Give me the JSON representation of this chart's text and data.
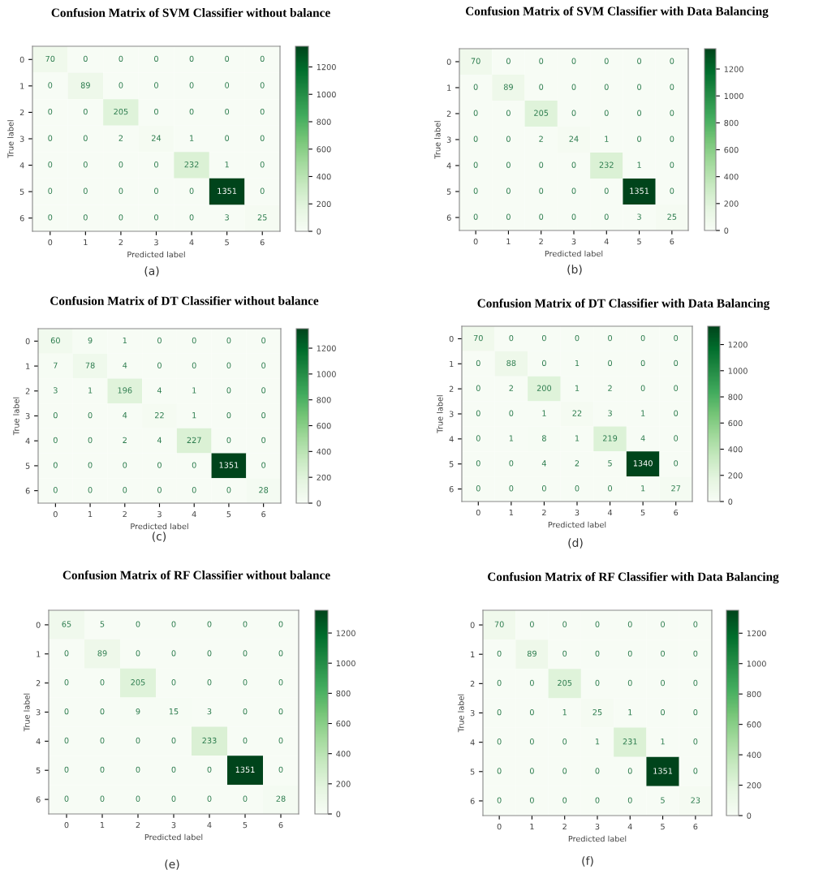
{
  "chart_data": [
    {
      "type": "heatmap",
      "title": "Confusion Matrix of SVM Classifier without balance",
      "xlabel": "Predicted label",
      "ylabel": "True label",
      "annotations": [
        "(a)"
      ],
      "categories": [
        "0",
        "1",
        "2",
        "3",
        "4",
        "5",
        "6"
      ],
      "y_categories": [
        "0",
        "1",
        "2",
        "3",
        "4",
        "5",
        "6"
      ],
      "cells": [
        [
          70,
          0,
          0,
          0,
          0,
          0,
          0
        ],
        [
          0,
          89,
          0,
          0,
          0,
          0,
          0
        ],
        [
          0,
          0,
          205,
          0,
          0,
          0,
          0
        ],
        [
          0,
          0,
          2,
          24,
          1,
          0,
          0
        ],
        [
          0,
          0,
          0,
          0,
          232,
          1,
          0
        ],
        [
          0,
          0,
          0,
          0,
          0,
          1351,
          0
        ],
        [
          0,
          0,
          0,
          0,
          0,
          3,
          25
        ]
      ],
      "clim": [
        0,
        1351
      ],
      "cticks": [
        0,
        200,
        400,
        600,
        800,
        1000,
        1200
      ],
      "data_labels": true
    },
    {
      "type": "heatmap",
      "title": "Confusion Matrix of SVM Classifier with Data Balancing",
      "xlabel": "Predicted label",
      "ylabel": "True label",
      "annotations": [
        "(b)"
      ],
      "categories": [
        "0",
        "1",
        "2",
        "3",
        "4",
        "5",
        "6"
      ],
      "y_categories": [
        "0",
        "1",
        "2",
        "3",
        "4",
        "5",
        "6"
      ],
      "cells": [
        [
          70,
          0,
          0,
          0,
          0,
          0,
          0
        ],
        [
          0,
          89,
          0,
          0,
          0,
          0,
          0
        ],
        [
          0,
          0,
          205,
          0,
          0,
          0,
          0
        ],
        [
          0,
          0,
          2,
          24,
          1,
          0,
          0
        ],
        [
          0,
          0,
          0,
          0,
          232,
          1,
          0
        ],
        [
          0,
          0,
          0,
          0,
          0,
          1351,
          0
        ],
        [
          0,
          0,
          0,
          0,
          0,
          3,
          25
        ]
      ],
      "clim": [
        0,
        1351
      ],
      "cticks": [
        0,
        200,
        400,
        600,
        800,
        1000,
        1200
      ],
      "data_labels": true
    },
    {
      "type": "heatmap",
      "title": "Confusion Matrix of DT Classifier without balance",
      "xlabel": "Predicted label",
      "ylabel": "True label",
      "annotations": [
        "(c)"
      ],
      "categories": [
        "0",
        "1",
        "2",
        "3",
        "4",
        "5",
        "6"
      ],
      "y_categories": [
        "0",
        "1",
        "2",
        "3",
        "4",
        "5",
        "6"
      ],
      "cells": [
        [
          60,
          9,
          1,
          0,
          0,
          0,
          0
        ],
        [
          7,
          78,
          4,
          0,
          0,
          0,
          0
        ],
        [
          3,
          1,
          196,
          4,
          1,
          0,
          0
        ],
        [
          0,
          0,
          4,
          22,
          1,
          0,
          0
        ],
        [
          0,
          0,
          2,
          4,
          227,
          0,
          0
        ],
        [
          0,
          0,
          0,
          0,
          0,
          1351,
          0
        ],
        [
          0,
          0,
          0,
          0,
          0,
          0,
          28
        ]
      ],
      "clim": [
        0,
        1351
      ],
      "cticks": [
        0,
        200,
        400,
        600,
        800,
        1000,
        1200
      ],
      "data_labels": true
    },
    {
      "type": "heatmap",
      "title": "Confusion Matrix of DT Classifier with Data Balancing",
      "xlabel": "Predicted label",
      "ylabel": "True label",
      "annotations": [
        "(d)"
      ],
      "categories": [
        "0",
        "1",
        "2",
        "3",
        "4",
        "5",
        "6"
      ],
      "y_categories": [
        "0",
        "1",
        "2",
        "3",
        "4",
        "5",
        "6"
      ],
      "cells": [
        [
          70,
          0,
          0,
          0,
          0,
          0,
          0
        ],
        [
          0,
          88,
          0,
          1,
          0,
          0,
          0
        ],
        [
          0,
          2,
          200,
          1,
          2,
          0,
          0
        ],
        [
          0,
          0,
          1,
          22,
          3,
          1,
          0
        ],
        [
          0,
          1,
          8,
          1,
          219,
          4,
          0
        ],
        [
          0,
          0,
          4,
          2,
          5,
          1340,
          0
        ],
        [
          0,
          0,
          0,
          0,
          0,
          1,
          27
        ]
      ],
      "clim": [
        0,
        1340
      ],
      "cticks": [
        0,
        200,
        400,
        600,
        800,
        1000,
        1200
      ],
      "data_labels": true
    },
    {
      "type": "heatmap",
      "title": "Confusion Matrix of RF Classifier without balance",
      "xlabel": "Predicted label",
      "ylabel": "True label",
      "annotations": [
        "(e)"
      ],
      "categories": [
        "0",
        "1",
        "2",
        "3",
        "4",
        "5",
        "6"
      ],
      "y_categories": [
        "0",
        "1",
        "2",
        "3",
        "4",
        "5",
        "6"
      ],
      "cells": [
        [
          65,
          5,
          0,
          0,
          0,
          0,
          0
        ],
        [
          0,
          89,
          0,
          0,
          0,
          0,
          0
        ],
        [
          0,
          0,
          205,
          0,
          0,
          0,
          0
        ],
        [
          0,
          0,
          9,
          15,
          3,
          0,
          0
        ],
        [
          0,
          0,
          0,
          0,
          233,
          0,
          0
        ],
        [
          0,
          0,
          0,
          0,
          0,
          1351,
          0
        ],
        [
          0,
          0,
          0,
          0,
          0,
          0,
          28
        ]
      ],
      "clim": [
        0,
        1351
      ],
      "cticks": [
        0,
        200,
        400,
        600,
        800,
        1000,
        1200
      ],
      "data_labels": true
    },
    {
      "type": "heatmap",
      "title": "Confusion Matrix of RF Classifier with Data Balancing",
      "xlabel": "Predicted label",
      "ylabel": "True label",
      "annotations": [
        "(f)"
      ],
      "categories": [
        "0",
        "1",
        "2",
        "3",
        "4",
        "5",
        "6"
      ],
      "y_categories": [
        "0",
        "1",
        "2",
        "3",
        "4",
        "5",
        "6"
      ],
      "cells": [
        [
          70,
          0,
          0,
          0,
          0,
          0,
          0
        ],
        [
          0,
          89,
          0,
          0,
          0,
          0,
          0
        ],
        [
          0,
          0,
          205,
          0,
          0,
          0,
          0
        ],
        [
          0,
          0,
          1,
          25,
          1,
          0,
          0
        ],
        [
          0,
          0,
          0,
          1,
          231,
          1,
          0
        ],
        [
          0,
          0,
          0,
          0,
          0,
          1351,
          0
        ],
        [
          0,
          0,
          0,
          0,
          0,
          5,
          23
        ]
      ],
      "clim": [
        0,
        1351
      ],
      "cticks": [
        0,
        200,
        400,
        600,
        800,
        1000,
        1200
      ],
      "data_labels": true
    }
  ]
}
